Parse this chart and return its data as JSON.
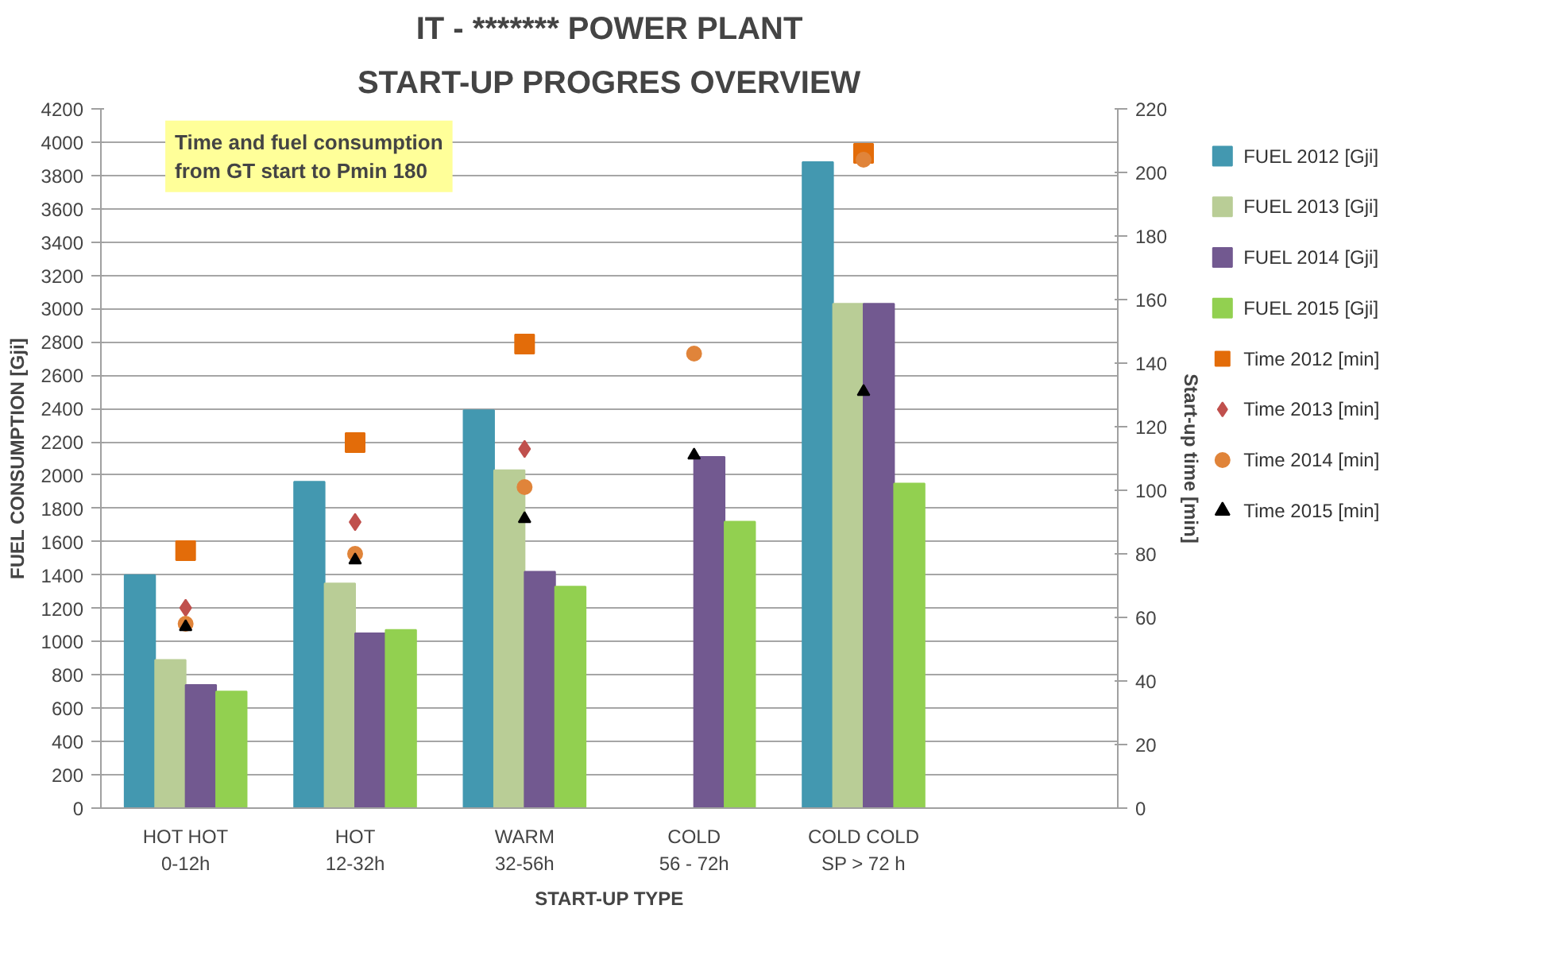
{
  "chart_data": {
    "type": "bar",
    "title": "IT - ******* POWER PLANT",
    "subtitle": "START-UP PROGRES OVERVIEW",
    "xlabel": "START-UP TYPE",
    "ylabel": "FUEL CONSUMPTION [Gji]",
    "y2label": "Start-up time [min]",
    "categories": [
      "HOT HOT\n0-12h",
      "HOT\n12-32h",
      "WARM\n32-56h",
      "COLD\n56 - 72h",
      "COLD COLD\nSP > 72 h",
      null
    ],
    "series": [
      {
        "name": "FUEL 2012 [Gji]",
        "color": "#4398b0",
        "values": [
          1400,
          1960,
          2390,
          null,
          3880,
          null
        ]
      },
      {
        "name": "FUEL 2013 [Gji]",
        "color": "#b9cd96",
        "values": [
          890,
          1350,
          2030,
          null,
          3030,
          null
        ]
      },
      {
        "name": "FUEL 2014 [Gji]",
        "color": "#725990",
        "values": [
          740,
          1050,
          1420,
          2110,
          3030,
          null
        ]
      },
      {
        "name": "FUEL 2015 [Gji]",
        "color": "#92d050",
        "values": [
          700,
          1070,
          1330,
          1720,
          1950,
          null
        ]
      },
      {
        "name": "Time 2012 [min]",
        "type": "scatter",
        "axis": "y2",
        "marker": "square",
        "color": "#e36c09",
        "values": [
          81,
          115,
          146,
          null,
          206,
          null
        ]
      },
      {
        "name": "Time 2013 [min]",
        "type": "scatter",
        "axis": "y2",
        "marker": "diamond",
        "color": "#c0504d",
        "values": [
          63,
          90,
          113,
          null,
          null,
          null
        ]
      },
      {
        "name": "Time 2014 [min]",
        "type": "scatter",
        "axis": "y2",
        "marker": "circle",
        "color": "#e0843a",
        "values": [
          58,
          80,
          101,
          143,
          204,
          null
        ]
      },
      {
        "name": "Time 2015 [min]",
        "type": "scatter",
        "axis": "y2",
        "marker": "triangle",
        "color": "#000000",
        "values": [
          57,
          78,
          91,
          111,
          131,
          null
        ]
      }
    ],
    "ylim": [
      0,
      4200
    ],
    "yticks": [
      0,
      200,
      400,
      600,
      800,
      1000,
      1200,
      1400,
      1600,
      1800,
      2000,
      2200,
      2400,
      2600,
      2800,
      3000,
      3200,
      3400,
      3600,
      3800,
      4000,
      4200
    ],
    "y2lim": [
      0,
      220
    ],
    "y2ticks": [
      0,
      20,
      40,
      60,
      80,
      100,
      120,
      140,
      160,
      180,
      200,
      220
    ],
    "annotations": [
      "Time and fuel consumption from GT start to Pmin 180"
    ],
    "grid": "y",
    "legend": "right"
  }
}
